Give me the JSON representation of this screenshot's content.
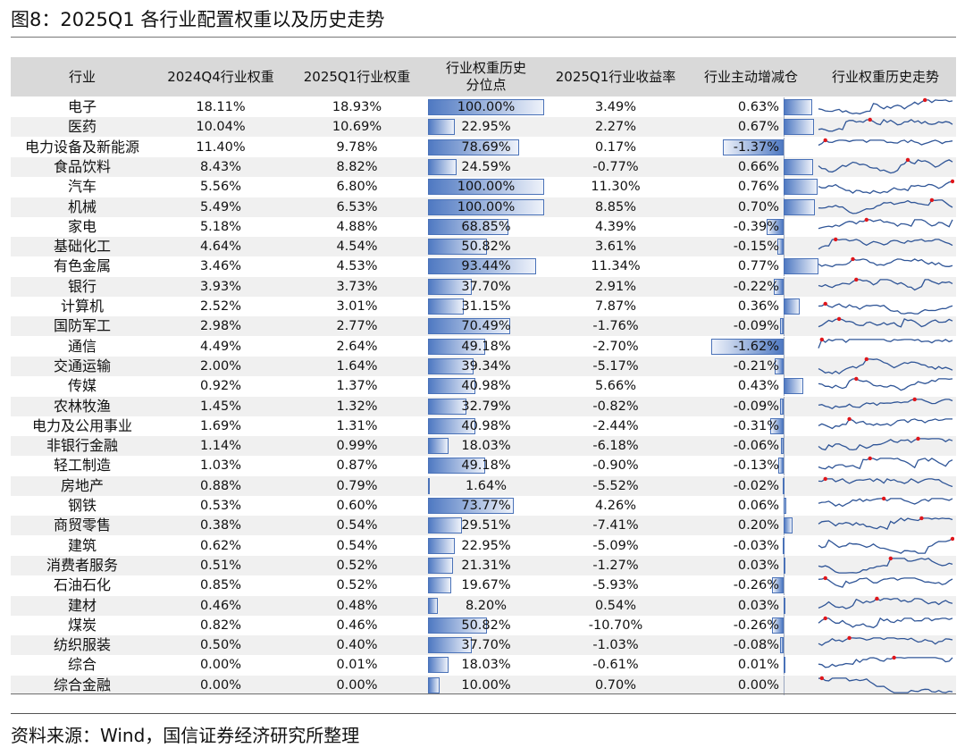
{
  "title": "图8：2025Q1 各行业配置权重以及历史走势",
  "source": "资料来源：Wind，国信证券经济研究所整理",
  "colors": {
    "bar": "#4f79c2",
    "line": "#2f5597",
    "marker": "#e0161b",
    "header_bg": "#d9d9d9",
    "zebra": "#f0f0f0"
  },
  "chart_data": {
    "type": "table",
    "columns": [
      "行业",
      "2024Q4行业权重",
      "2025Q1行业权重",
      "行业权重历史分位点",
      "2025Q1行业收益率",
      "行业主动增减仓",
      "行业权重历史走势"
    ],
    "rows": [
      {
        "industry": "电子",
        "w_2024q4": "18.11%",
        "w_2025q1": "18.93%",
        "percentile": "100.00%",
        "return": "3.49%",
        "active": "0.63%"
      },
      {
        "industry": "医药",
        "w_2024q4": "10.04%",
        "w_2025q1": "10.69%",
        "percentile": "22.95%",
        "return": "2.27%",
        "active": "0.67%"
      },
      {
        "industry": "电力设备及新能源",
        "w_2024q4": "11.40%",
        "w_2025q1": "9.78%",
        "percentile": "78.69%",
        "return": "0.17%",
        "active": "-1.37%"
      },
      {
        "industry": "食品饮料",
        "w_2024q4": "8.43%",
        "w_2025q1": "8.82%",
        "percentile": "24.59%",
        "return": "-0.77%",
        "active": "0.66%"
      },
      {
        "industry": "汽车",
        "w_2024q4": "5.56%",
        "w_2025q1": "6.80%",
        "percentile": "100.00%",
        "return": "11.30%",
        "active": "0.76%"
      },
      {
        "industry": "机械",
        "w_2024q4": "5.49%",
        "w_2025q1": "6.53%",
        "percentile": "100.00%",
        "return": "8.85%",
        "active": "0.70%"
      },
      {
        "industry": "家电",
        "w_2024q4": "5.18%",
        "w_2025q1": "4.88%",
        "percentile": "68.85%",
        "return": "4.39%",
        "active": "-0.39%"
      },
      {
        "industry": "基础化工",
        "w_2024q4": "4.64%",
        "w_2025q1": "4.54%",
        "percentile": "50.82%",
        "return": "3.61%",
        "active": "-0.15%"
      },
      {
        "industry": "有色金属",
        "w_2024q4": "3.46%",
        "w_2025q1": "4.53%",
        "percentile": "93.44%",
        "return": "11.34%",
        "active": "0.77%"
      },
      {
        "industry": "银行",
        "w_2024q4": "3.93%",
        "w_2025q1": "3.73%",
        "percentile": "37.70%",
        "return": "2.91%",
        "active": "-0.22%"
      },
      {
        "industry": "计算机",
        "w_2024q4": "2.52%",
        "w_2025q1": "3.01%",
        "percentile": "31.15%",
        "return": "7.87%",
        "active": "0.36%"
      },
      {
        "industry": "国防军工",
        "w_2024q4": "2.98%",
        "w_2025q1": "2.77%",
        "percentile": "70.49%",
        "return": "-1.76%",
        "active": "-0.09%"
      },
      {
        "industry": "通信",
        "w_2024q4": "4.49%",
        "w_2025q1": "2.64%",
        "percentile": "49.18%",
        "return": "-2.70%",
        "active": "-1.62%"
      },
      {
        "industry": "交通运输",
        "w_2024q4": "2.00%",
        "w_2025q1": "1.64%",
        "percentile": "39.34%",
        "return": "-5.17%",
        "active": "-0.21%"
      },
      {
        "industry": "传媒",
        "w_2024q4": "0.92%",
        "w_2025q1": "1.37%",
        "percentile": "40.98%",
        "return": "5.66%",
        "active": "0.43%"
      },
      {
        "industry": "农林牧渔",
        "w_2024q4": "1.45%",
        "w_2025q1": "1.32%",
        "percentile": "32.79%",
        "return": "-0.82%",
        "active": "-0.09%"
      },
      {
        "industry": "电力及公用事业",
        "w_2024q4": "1.69%",
        "w_2025q1": "1.31%",
        "percentile": "40.98%",
        "return": "-2.44%",
        "active": "-0.31%"
      },
      {
        "industry": "非银行金融",
        "w_2024q4": "1.14%",
        "w_2025q1": "0.99%",
        "percentile": "18.03%",
        "return": "-6.18%",
        "active": "-0.06%"
      },
      {
        "industry": "轻工制造",
        "w_2024q4": "1.03%",
        "w_2025q1": "0.87%",
        "percentile": "49.18%",
        "return": "-0.90%",
        "active": "-0.13%"
      },
      {
        "industry": "房地产",
        "w_2024q4": "0.88%",
        "w_2025q1": "0.79%",
        "percentile": "1.64%",
        "return": "-5.52%",
        "active": "-0.02%"
      },
      {
        "industry": "钢铁",
        "w_2024q4": "0.53%",
        "w_2025q1": "0.60%",
        "percentile": "73.77%",
        "return": "4.26%",
        "active": "0.06%"
      },
      {
        "industry": "商贸零售",
        "w_2024q4": "0.38%",
        "w_2025q1": "0.54%",
        "percentile": "29.51%",
        "return": "-7.41%",
        "active": "0.20%"
      },
      {
        "industry": "建筑",
        "w_2024q4": "0.62%",
        "w_2025q1": "0.54%",
        "percentile": "22.95%",
        "return": "-5.09%",
        "active": "-0.03%"
      },
      {
        "industry": "消费者服务",
        "w_2024q4": "0.51%",
        "w_2025q1": "0.52%",
        "percentile": "21.31%",
        "return": "-1.27%",
        "active": "0.03%"
      },
      {
        "industry": "石油石化",
        "w_2024q4": "0.85%",
        "w_2025q1": "0.52%",
        "percentile": "19.67%",
        "return": "-5.93%",
        "active": "-0.26%"
      },
      {
        "industry": "建材",
        "w_2024q4": "0.46%",
        "w_2025q1": "0.48%",
        "percentile": "8.20%",
        "return": "0.54%",
        "active": "0.03%"
      },
      {
        "industry": "煤炭",
        "w_2024q4": "0.82%",
        "w_2025q1": "0.46%",
        "percentile": "50.82%",
        "return": "-10.70%",
        "active": "-0.26%"
      },
      {
        "industry": "纺织服装",
        "w_2024q4": "0.50%",
        "w_2025q1": "0.40%",
        "percentile": "37.70%",
        "return": "-1.03%",
        "active": "-0.08%"
      },
      {
        "industry": "综合",
        "w_2024q4": "0.00%",
        "w_2025q1": "0.01%",
        "percentile": "18.03%",
        "return": "-0.61%",
        "active": "0.01%"
      },
      {
        "industry": "综合金融",
        "w_2024q4": "0.00%",
        "w_2025q1": "0.00%",
        "percentile": "10.00%",
        "return": "0.70%",
        "active": "0.00%"
      }
    ]
  }
}
